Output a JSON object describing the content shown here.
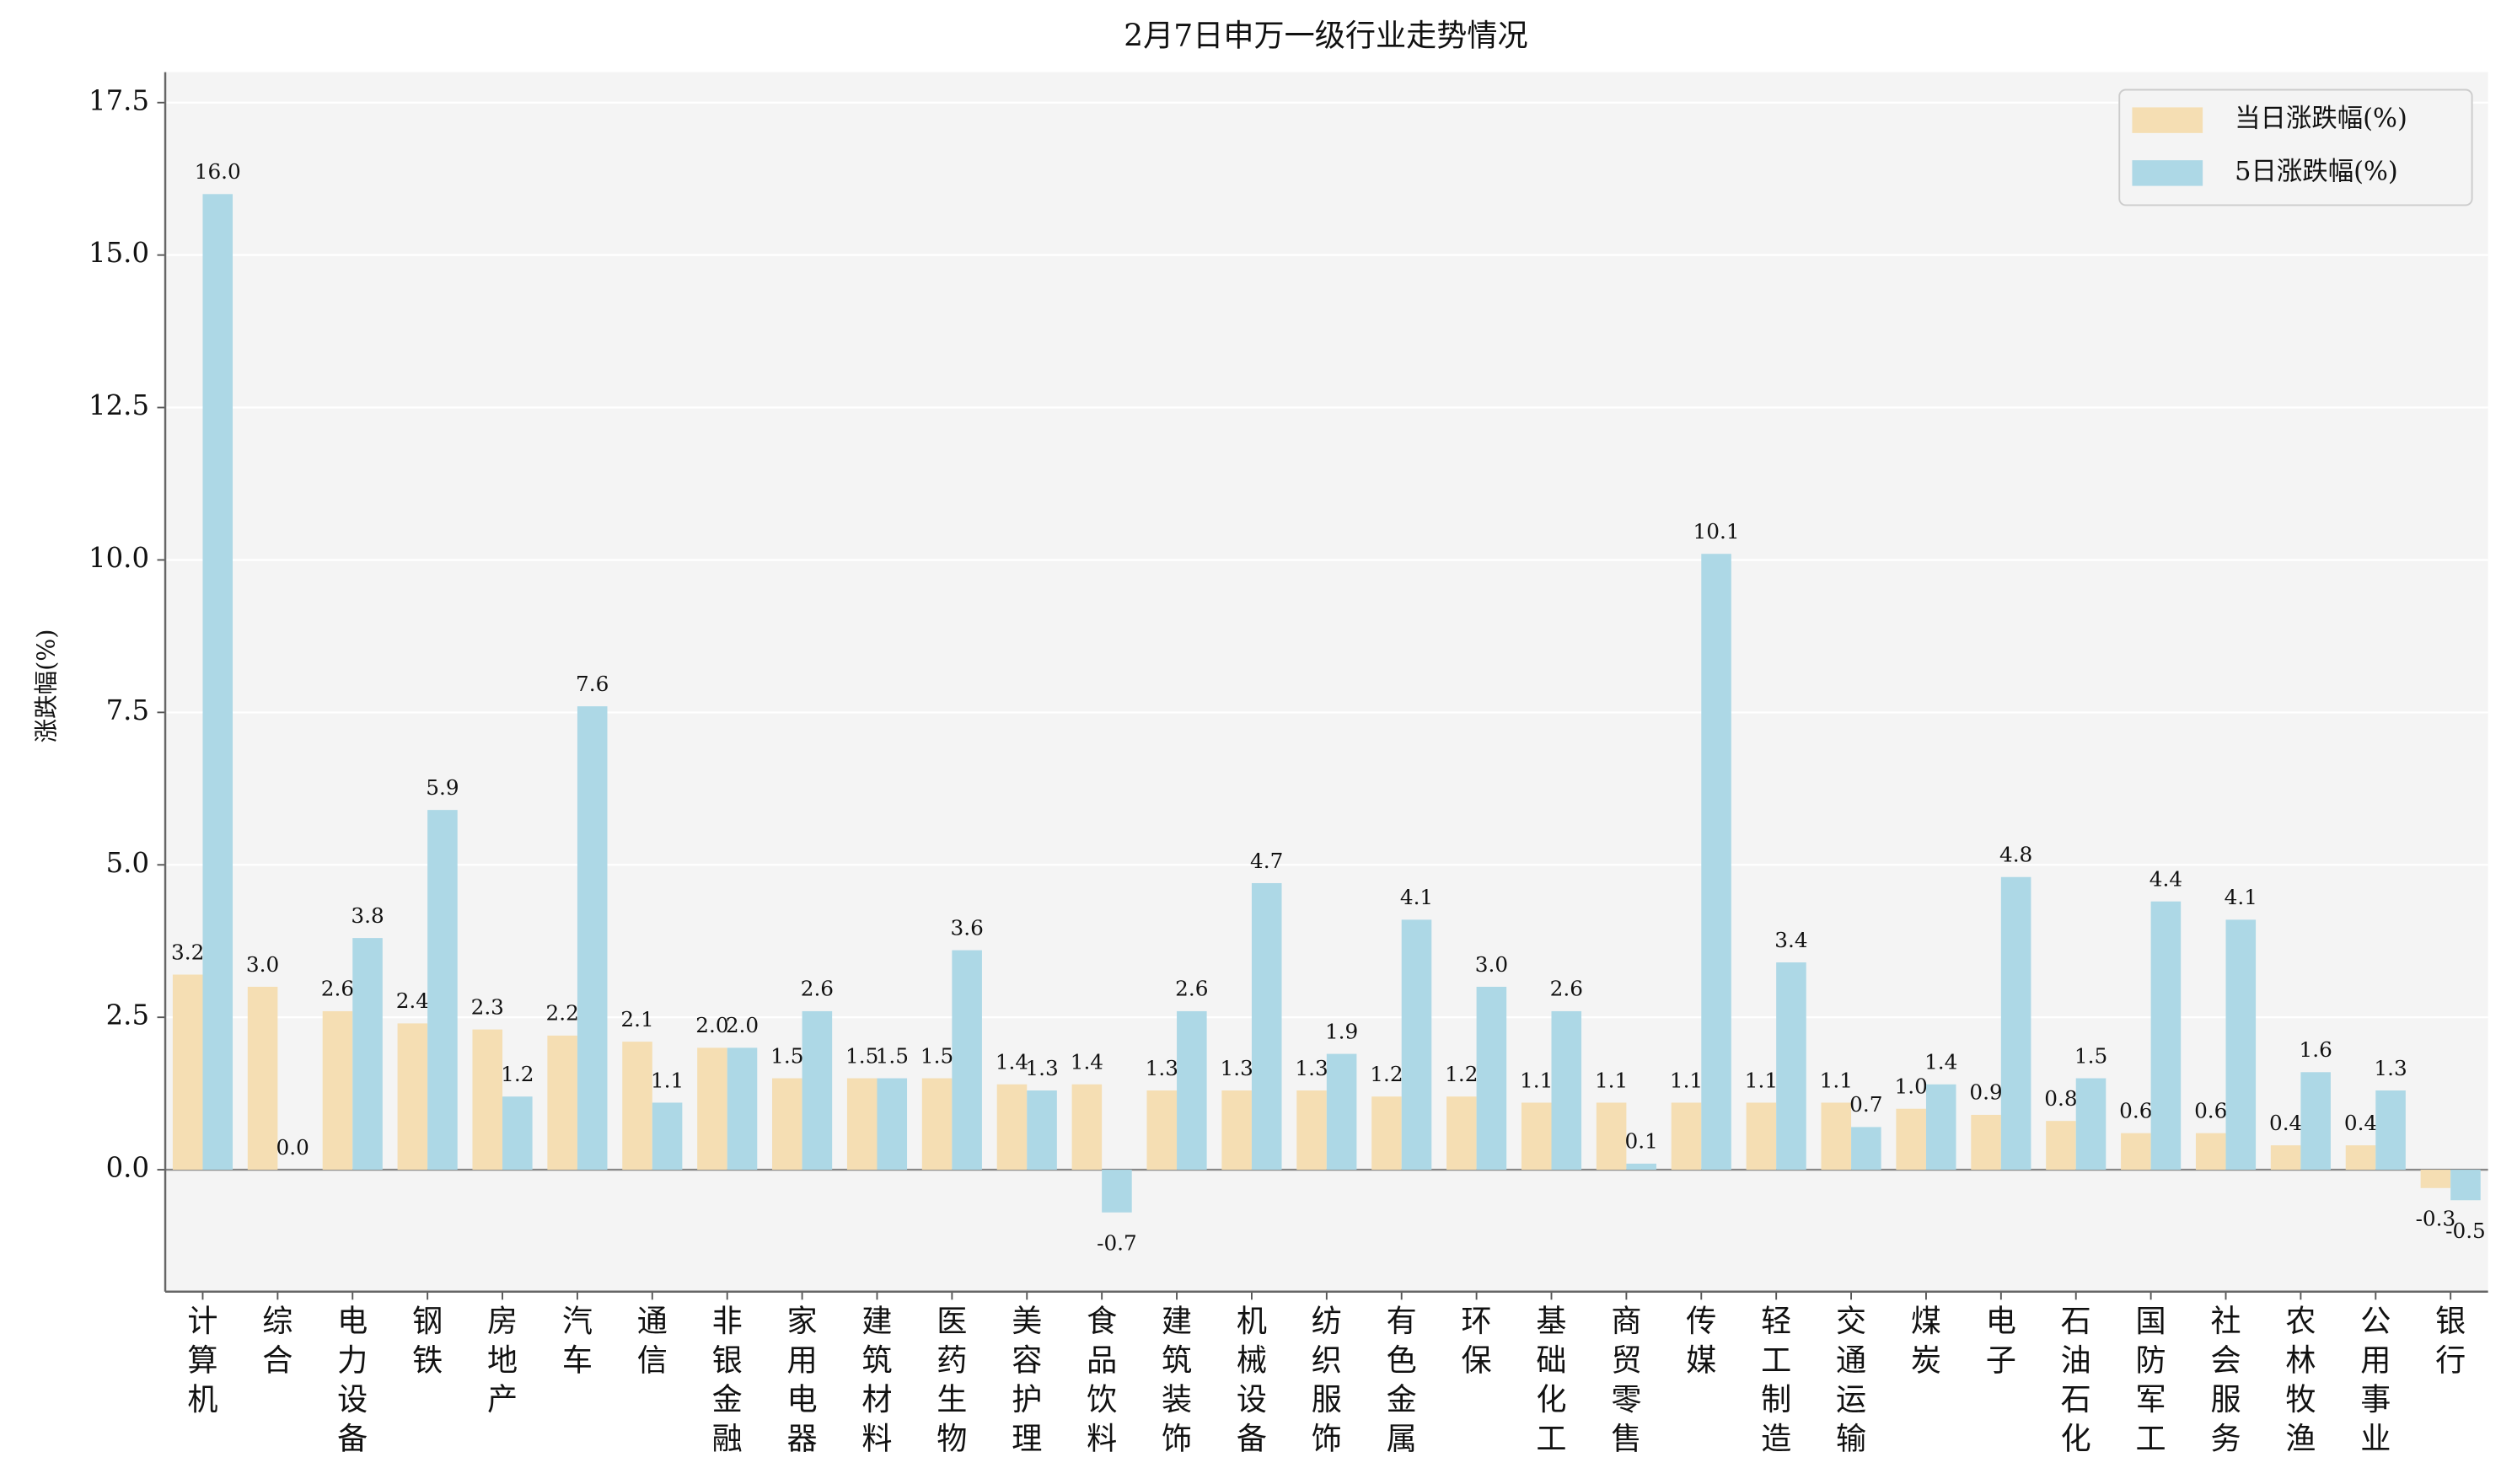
{
  "chart_data": {
    "type": "bar",
    "title": "2月7日申万一级行业走势情况",
    "y_label": "涨跌幅(%)",
    "categories": [
      "计算机",
      "综合",
      "电力设备",
      "钢铁",
      "房地产",
      "汽车",
      "通信",
      "非银金融",
      "家用电器",
      "建筑材料",
      "医药生物",
      "美容护理",
      "食品饮料",
      "建筑装饰",
      "机械设备",
      "纺织服饰",
      "有色金属",
      "环保",
      "基础化工",
      "商贸零售",
      "传媒",
      "轻工制造",
      "交通运输",
      "煤炭",
      "电子",
      "石油石化",
      "国防军工",
      "社会服务",
      "农林牧渔",
      "公用事业",
      "银行"
    ],
    "series": [
      {
        "name": "当日涨跌幅(%)",
        "color": "#f5deb3",
        "values": [
          3.2,
          3.0,
          2.6,
          2.4,
          2.3,
          2.2,
          2.1,
          2.0,
          1.5,
          1.5,
          1.5,
          1.4,
          1.4,
          1.3,
          1.3,
          1.3,
          1.2,
          1.2,
          1.1,
          1.1,
          1.1,
          1.1,
          1.1,
          1.0,
          0.9,
          0.8,
          0.6,
          0.6,
          0.4,
          0.4,
          -0.3
        ],
        "value_labels": [
          "3.2",
          "3.0",
          "2.6",
          "2.4",
          "2.3",
          "2.2",
          "2.1",
          "2.0",
          "1.5",
          "1.5",
          "1.5",
          "1.4",
          "1.4",
          "1.3",
          "1.3",
          "1.3",
          "1.2",
          "1.2",
          "1.1",
          "1.1",
          "1.1",
          "1.1",
          "1.1",
          "1.0",
          "0.9",
          "0.8",
          "0.6",
          "0.6",
          "0.4",
          "0.4",
          "-0.3"
        ]
      },
      {
        "name": "5日涨跌幅(%)",
        "color": "#add8e6",
        "values": [
          16.0,
          0.0,
          3.8,
          5.9,
          1.2,
          7.6,
          1.1,
          2.0,
          2.6,
          1.5,
          3.6,
          1.3,
          -0.7,
          2.6,
          4.7,
          1.9,
          4.1,
          3.0,
          2.6,
          0.1,
          10.1,
          3.4,
          0.7,
          1.4,
          4.8,
          1.5,
          4.4,
          4.1,
          1.6,
          1.3,
          -0.5
        ],
        "value_labels": [
          "16.0",
          "0.0",
          "3.8",
          "5.9",
          "1.2",
          "7.6",
          "1.1",
          "2.0",
          "2.6",
          "1.5",
          "3.6",
          "1.3",
          "-0.7",
          "2.6",
          "4.7",
          "1.9",
          "4.1",
          "3.0",
          "2.6",
          "0.1",
          "10.1",
          "3.4",
          "0.7",
          "1.4",
          "4.8",
          "1.5",
          "4.4",
          "4.1",
          "1.6",
          "1.3",
          "-0.5"
        ]
      }
    ],
    "ylim": [
      -2.0,
      18.0
    ],
    "yticks": [
      {
        "value": 0,
        "label": "0.0"
      },
      {
        "value": 2.5,
        "label": "2.5"
      },
      {
        "value": 5,
        "label": "5.0"
      },
      {
        "value": 7.5,
        "label": "7.5"
      },
      {
        "value": 10,
        "label": "10.0"
      },
      {
        "value": 12.5,
        "label": "12.5"
      },
      {
        "value": 15,
        "label": "15.0"
      },
      {
        "value": 17.5,
        "label": "17.5"
      }
    ],
    "grid": true,
    "legend": "upper right"
  }
}
